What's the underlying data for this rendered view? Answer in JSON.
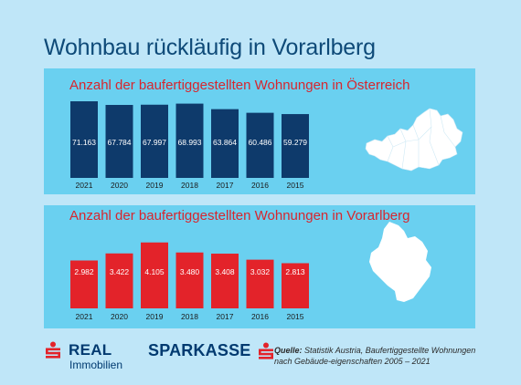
{
  "title": "Wohnbau rückläufig in Vorarlberg",
  "colors": {
    "background": "#bfe6f8",
    "panel": "#6ad0f0",
    "bar_austria": "#0e3a6b",
    "bar_vorarlberg": "#e3232a",
    "title": "#0e4a78",
    "panel_title": "#d7262e"
  },
  "chart_data": [
    {
      "type": "bar",
      "title": "Anzahl der baufertiggestellten Wohnungen in Österreich",
      "categories": [
        "2021",
        "2020",
        "2019",
        "2018",
        "2017",
        "2016",
        "2015"
      ],
      "values": [
        71163,
        67784,
        67997,
        68993,
        63864,
        60486,
        59279
      ],
      "value_labels": [
        "71.163",
        "67.784",
        "67.997",
        "68.993",
        "63.864",
        "60.486",
        "59.279"
      ],
      "color": "#0e3a6b",
      "map": "Austria"
    },
    {
      "type": "bar",
      "title": "Anzahl der baufertiggestellten Wohnungen in Vorarlberg",
      "categories": [
        "2021",
        "2020",
        "2019",
        "2018",
        "2017",
        "2016",
        "2015"
      ],
      "values": [
        2982,
        3422,
        4105,
        3480,
        3408,
        3032,
        2813
      ],
      "value_labels": [
        "2.982",
        "3.422",
        "4.105",
        "3.480",
        "3.408",
        "3.032",
        "2.813"
      ],
      "color": "#e3232a",
      "map": "Vorarlberg"
    }
  ],
  "footer": {
    "logo_real_line1": "REAL",
    "logo_real_line2": "Immobilien",
    "logo_sparkasse": "SPARKASSE",
    "source_label": "Quelle:",
    "source_text": " Statistik Austria, Baufertiggestellte Wohnungen nach Gebäude-eigenschaften 2005 – 2021"
  }
}
